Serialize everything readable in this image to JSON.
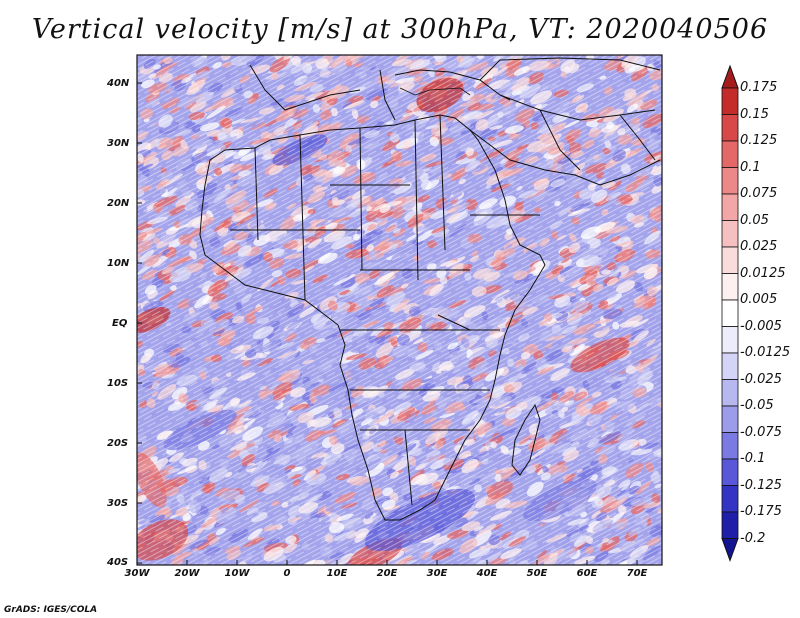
{
  "title": "Vertical velocity [m/s] at 300hPa, VT: 2020040506",
  "lat_labels": [
    "40N",
    "30N",
    "20N",
    "10N",
    "EQ",
    "10S",
    "20S",
    "30S",
    "40S"
  ],
  "lon_labels": [
    "30W",
    "20W",
    "10W",
    "0",
    "10E",
    "20E",
    "30E",
    "40E",
    "50E",
    "60E",
    "70E"
  ],
  "colorbar": {
    "levels": [
      "0.175",
      "0.15",
      "0.125",
      "0.1",
      "0.075",
      "0.05",
      "0.025",
      "0.0125",
      "0.005",
      "-0.005",
      "-0.0125",
      "-0.025",
      "-0.05",
      "-0.075",
      "-0.1",
      "-0.125",
      "-0.175",
      "-0.2"
    ],
    "colors": [
      "#a41c1c",
      "#c42c2c",
      "#d84848",
      "#e46868",
      "#ec8888",
      "#f2a6a6",
      "#f6c0c0",
      "#fadcdc",
      "#fdf0f0",
      "#ffffff",
      "#ececfb",
      "#d4d4f6",
      "#b8b8f0",
      "#9c9cea",
      "#7a7ae2",
      "#5858d8",
      "#3434c4",
      "#1e1ea8",
      "#141490"
    ]
  },
  "credit": "GrADS: IGES/COLA",
  "map": {
    "lon_min": -30,
    "lon_max": 75,
    "lat_min": -40,
    "lat_max": 45
  }
}
